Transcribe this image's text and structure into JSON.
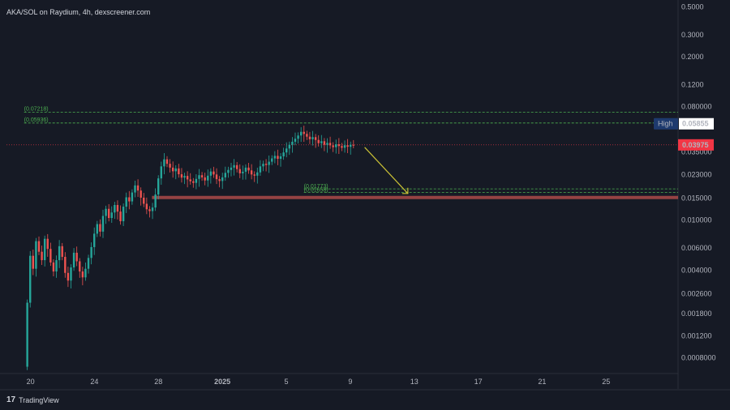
{
  "header": {
    "title": "AKA/SOL on Raydium, 4h, dexscreener.com",
    "brand": "TradingView",
    "brand_mark": "17"
  },
  "colors": {
    "up": "#26a69a",
    "down": "#ef5350",
    "resistance": "#4caf50",
    "support_box": "#c0504d",
    "arrow": "#c9c035",
    "high_badge": "#1e3a6e",
    "price_badge": "#f23645"
  },
  "chart_data": {
    "type": "candlestick",
    "y_scale": "log",
    "ylim": [
      0.0006,
      0.55
    ],
    "y_ticks": [
      "0.5000",
      "0.3000",
      "0.2000",
      "0.1200",
      "0.080000",
      "0.058",
      "0.035000",
      "0.023000",
      "0.015000",
      "0.010000",
      "0.006000",
      "0.004000",
      "0.002600",
      "0.001800",
      "0.001200",
      "0.0008000"
    ],
    "y_tick_values": [
      0.5,
      0.3,
      0.2,
      0.12,
      0.08,
      0.058,
      0.035,
      0.023,
      0.015,
      0.01,
      0.006,
      0.004,
      0.0026,
      0.0018,
      0.0012,
      0.0008
    ],
    "x_ticks": [
      "20",
      "24",
      "28",
      "2025",
      "5",
      "9",
      "13",
      "17",
      "21",
      "25"
    ],
    "x_tick_days": [
      20,
      24,
      28,
      32,
      36,
      40,
      44,
      48,
      52,
      56
    ],
    "x_range_days": [
      18.5,
      60.5
    ],
    "resistance_levels": [
      {
        "label": "(0.07218)",
        "value": 0.07218
      },
      {
        "label": "(0.05936)",
        "value": 0.05936
      }
    ],
    "support_levels": [
      {
        "label": "(0.01773)",
        "value": 0.01773
      },
      {
        "label": "(0.01658)",
        "value": 0.01658
      }
    ],
    "support_zone": {
      "from_day": 27.6,
      "to_day": 60.5,
      "low": 0.0147,
      "high": 0.0156
    },
    "high": {
      "label": "High",
      "value": "0.05855",
      "numeric": 0.05855
    },
    "last_price": {
      "value": "0.03975",
      "numeric": 0.03975
    },
    "arrow": {
      "from_day": 40.9,
      "from_value": 0.038,
      "to_day": 43.6,
      "to_value": 0.0163
    },
    "candles_close": [
      0.0022,
      0.0052,
      0.0041,
      0.0068,
      0.0056,
      0.0048,
      0.0071,
      0.0059,
      0.0046,
      0.0039,
      0.0048,
      0.0062,
      0.0051,
      0.0038,
      0.0033,
      0.0042,
      0.0055,
      0.0047,
      0.0039,
      0.0035,
      0.0041,
      0.005,
      0.0061,
      0.0078,
      0.0093,
      0.0081,
      0.0108,
      0.0123,
      0.0104,
      0.0115,
      0.0132,
      0.0117,
      0.0098,
      0.0128,
      0.0152,
      0.0141,
      0.0166,
      0.0189,
      0.0172,
      0.0151,
      0.0135,
      0.0122,
      0.0118,
      0.0126,
      0.016,
      0.0215,
      0.0268,
      0.0305,
      0.0281,
      0.0262,
      0.0245,
      0.0258,
      0.0232,
      0.0218,
      0.0225,
      0.0211,
      0.0204,
      0.0198,
      0.0213,
      0.0228,
      0.0219,
      0.0207,
      0.0226,
      0.0244,
      0.0231,
      0.0212,
      0.0205,
      0.0219,
      0.0238,
      0.0251,
      0.0262,
      0.0274,
      0.0255,
      0.0236,
      0.0243,
      0.0262,
      0.0249,
      0.0231,
      0.0226,
      0.024,
      0.0268,
      0.0281,
      0.0275,
      0.0292,
      0.031,
      0.0325,
      0.0308,
      0.0322,
      0.0346,
      0.0372,
      0.0398,
      0.0421,
      0.0445,
      0.0472,
      0.0505,
      0.0486,
      0.0462,
      0.0441,
      0.0458,
      0.0435,
      0.041,
      0.0425,
      0.0398,
      0.0412,
      0.0394,
      0.0381,
      0.0402,
      0.0389,
      0.0377,
      0.0395,
      0.0384,
      0.0398,
      0.03975
    ]
  }
}
